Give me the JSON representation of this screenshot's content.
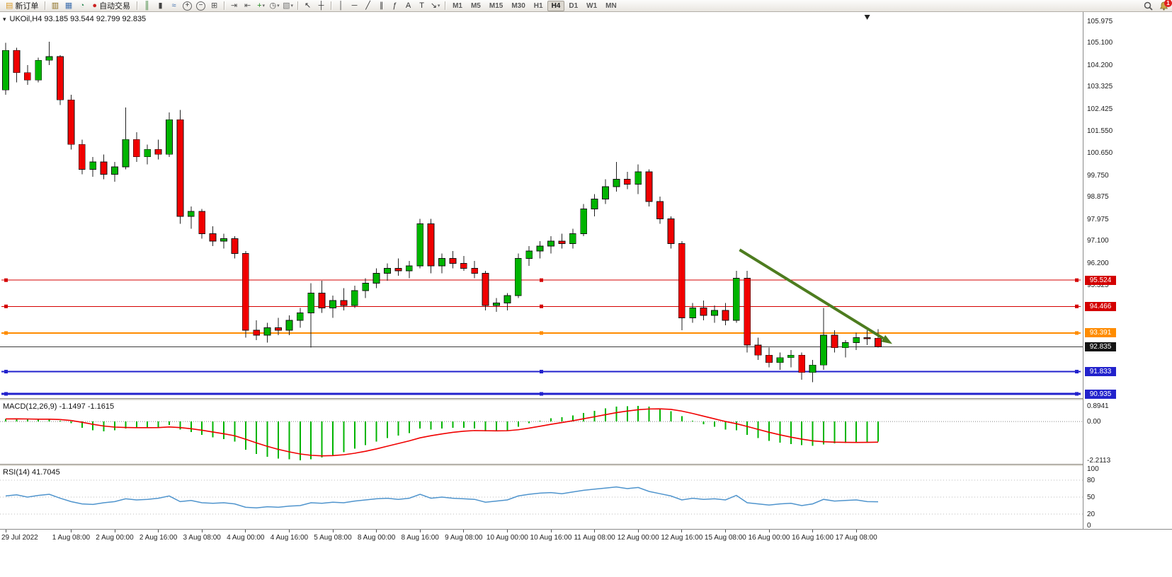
{
  "toolbar": {
    "notification_count": "1",
    "active_timeframe": "H4",
    "items": [
      {
        "t": "btn",
        "name": "new-order-button",
        "label": "新订单",
        "glyph": "▤",
        "color": "#d89b2c"
      },
      {
        "t": "sep"
      },
      {
        "t": "icon",
        "name": "charts-grid-icon",
        "glyph": "▥",
        "color": "#8a6d1f"
      },
      {
        "t": "icon",
        "name": "profiles-icon",
        "glyph": "▦",
        "color": "#3e6fae"
      },
      {
        "t": "icon",
        "name": "refresh-icon",
        "glyph": "◔",
        "color": "#2f8b57"
      },
      {
        "t": "btn",
        "name": "autotrading-button",
        "label": "自动交易",
        "glyph": "●",
        "color": "#cc2222"
      },
      {
        "t": "sep"
      },
      {
        "t": "icon",
        "name": "bar-chart-type-icon",
        "glyph": "║",
        "color": "#2f7d2f"
      },
      {
        "t": "icon",
        "name": "candlestick-type-icon",
        "glyph": "▮",
        "color": "#444444"
      },
      {
        "t": "icon",
        "name": "line-chart-type-icon",
        "glyph": "≈",
        "color": "#3e6fae"
      },
      {
        "t": "icon",
        "name": "zoom-in-icon",
        "glyph": "+",
        "color": "#333333",
        "circle": true
      },
      {
        "t": "icon",
        "name": "zoom-out-icon",
        "glyph": "−",
        "color": "#333333",
        "circle": true
      },
      {
        "t": "icon",
        "name": "tile-windows-icon",
        "glyph": "⊞",
        "color": "#555555"
      },
      {
        "t": "sep"
      },
      {
        "t": "icon",
        "name": "auto-scroll-icon",
        "glyph": "⇥",
        "color": "#555555"
      },
      {
        "t": "icon",
        "name": "chart-shift-icon",
        "glyph": "⇤",
        "color": "#555555"
      },
      {
        "t": "icon",
        "name": "add-indicator-icon",
        "glyph": "+",
        "color": "#1c8a1c",
        "dd": true
      },
      {
        "t": "icon",
        "name": "periods-icon",
        "glyph": "◷",
        "color": "#555555",
        "dd": true
      },
      {
        "t": "icon",
        "name": "templates-icon",
        "glyph": "▧",
        "color": "#777777",
        "dd": true
      },
      {
        "t": "sep"
      },
      {
        "t": "icon",
        "name": "cursor-icon",
        "glyph": "↖",
        "color": "#333333"
      },
      {
        "t": "icon",
        "name": "crosshair-icon",
        "glyph": "┼",
        "color": "#333333"
      },
      {
        "t": "sep"
      },
      {
        "t": "icon",
        "name": "vertical-line-icon",
        "glyph": "│",
        "color": "#333333"
      },
      {
        "t": "icon",
        "name": "horizontal-line-icon",
        "glyph": "─",
        "color": "#333333"
      },
      {
        "t": "icon",
        "name": "trendline-icon",
        "glyph": "╱",
        "color": "#333333"
      },
      {
        "t": "icon",
        "name": "channel-icon",
        "glyph": "∥",
        "color": "#333333"
      },
      {
        "t": "icon",
        "name": "fibonacci-icon",
        "glyph": "ƒ",
        "color": "#333333"
      },
      {
        "t": "icon",
        "name": "text-icon",
        "glyph": "A",
        "color": "#333333"
      },
      {
        "t": "icon",
        "name": "label-icon",
        "glyph": "T",
        "color": "#333333"
      },
      {
        "t": "icon",
        "name": "arrows-icon",
        "glyph": "↘",
        "color": "#333333",
        "dd": true
      },
      {
        "t": "sep"
      },
      {
        "t": "tf",
        "name": "timeframe-m1",
        "label": "M1"
      },
      {
        "t": "tf",
        "name": "timeframe-m5",
        "label": "M5"
      },
      {
        "t": "tf",
        "name": "timeframe-m15",
        "label": "M15"
      },
      {
        "t": "tf",
        "name": "timeframe-m30",
        "label": "M30"
      },
      {
        "t": "tf",
        "name": "timeframe-h1",
        "label": "H1"
      },
      {
        "t": "tf",
        "name": "timeframe-h4",
        "label": "H4"
      },
      {
        "t": "tf",
        "name": "timeframe-d1",
        "label": "D1"
      },
      {
        "t": "tf",
        "name": "timeframe-w1",
        "label": "W1"
      },
      {
        "t": "tf",
        "name": "timeframe-mn",
        "label": "MN"
      }
    ]
  },
  "chart": {
    "title": "UKOil,H4 93.185 93.544 92.799 92.835",
    "symbol": "UKOil",
    "period": "H4",
    "open": "93.185",
    "high": "93.544",
    "low": "92.799",
    "close": "92.835",
    "collapse_glyph": "▾"
  },
  "macd": {
    "label": "MACD(12,26,9) -1.1497 -1.1615",
    "ticks": [
      {
        "v": 0.8941,
        "label": "0.8941"
      },
      {
        "v": 0,
        "label": "0.00"
      },
      {
        "v": -2.2113,
        "label": "-2.2113"
      }
    ]
  },
  "rsi": {
    "label": "RSI(14) 41.7045",
    "ticks": [
      {
        "v": 100,
        "label": "100"
      },
      {
        "v": 80,
        "label": "80"
      },
      {
        "v": 50,
        "label": "50"
      },
      {
        "v": 20,
        "label": "20"
      },
      {
        "v": 0,
        "label": "0"
      }
    ],
    "levels": [
      80,
      50,
      20
    ]
  },
  "chart_data": {
    "type": "candlestick",
    "title": "UKOil,H4",
    "timeframe": "H4",
    "ylim": [
      90.5,
      106.2
    ],
    "colors": {
      "up": "#00b400",
      "down": "#f00000",
      "wick": "#222222",
      "macd_hist": "#00b400",
      "macd_signal": "#f00000",
      "rsi_line": "#4f94cd",
      "bid_line": "#3c3c3c",
      "bid_tag": "#141414",
      "arrow": "#4d7c1f"
    },
    "y_ticks": [
      {
        "p": 105.975,
        "label": "105.975"
      },
      {
        "p": 105.1,
        "label": "105.100"
      },
      {
        "p": 104.2,
        "label": "104.200"
      },
      {
        "p": 103.325,
        "label": "103.325"
      },
      {
        "p": 102.425,
        "label": "102.425"
      },
      {
        "p": 101.55,
        "label": "101.550"
      },
      {
        "p": 100.65,
        "label": "100.650"
      },
      {
        "p": 99.75,
        "label": "99.750"
      },
      {
        "p": 98.875,
        "label": "98.875"
      },
      {
        "p": 97.975,
        "label": "97.975"
      },
      {
        "p": 97.1,
        "label": "97.100"
      },
      {
        "p": 96.2,
        "label": "96.200"
      },
      {
        "p": 95.325,
        "label": "95.325"
      }
    ],
    "levels": [
      {
        "price": 95.524,
        "label": "95.524",
        "color": "#d40000",
        "width": 1
      },
      {
        "price": 94.466,
        "label": "94.466",
        "color": "#d40000",
        "width": 1
      },
      {
        "price": 93.391,
        "label": "93.391",
        "color": "#ff8c00",
        "width": 2
      },
      {
        "price": 91.833,
        "label": "91.833",
        "color": "#2222cc",
        "width": 2
      },
      {
        "price": 90.935,
        "label": "90.935",
        "color": "#2222cc",
        "width": 3
      }
    ],
    "bid": {
      "price": 92.835,
      "label": "92.835"
    },
    "arrow": {
      "from": {
        "i": 67.3,
        "price": 96.75
      },
      "to": {
        "i": 81.3,
        "price": 92.95
      }
    },
    "current_bar_marker": {
      "i": 79
    },
    "x_labels": [
      {
        "i": 0,
        "label": "29 Jul 2022"
      },
      {
        "i": 6,
        "label": "1 Aug 08:00"
      },
      {
        "i": 10,
        "label": "2 Aug 00:00"
      },
      {
        "i": 14,
        "label": "2 Aug 16:00"
      },
      {
        "i": 18,
        "label": "3 Aug 08:00"
      },
      {
        "i": 22,
        "label": "4 Aug 00:00"
      },
      {
        "i": 26,
        "label": "4 Aug 16:00"
      },
      {
        "i": 30,
        "label": "5 Aug 08:00"
      },
      {
        "i": 34,
        "label": "8 Aug 00:00"
      },
      {
        "i": 38,
        "label": "8 Aug 16:00"
      },
      {
        "i": 42,
        "label": "9 Aug 08:00"
      },
      {
        "i": 46,
        "label": "10 Aug 00:00"
      },
      {
        "i": 50,
        "label": "10 Aug 16:00"
      },
      {
        "i": 54,
        "label": "11 Aug 08:00"
      },
      {
        "i": 58,
        "label": "12 Aug 00:00"
      },
      {
        "i": 62,
        "label": "12 Aug 16:00"
      },
      {
        "i": 66,
        "label": "15 Aug 08:00"
      },
      {
        "i": 70,
        "label": "16 Aug 00:00"
      },
      {
        "i": 74,
        "label": "16 Aug 16:00"
      },
      {
        "i": 78,
        "label": "17 Aug 08:00"
      }
    ],
    "ohlc": [
      [
        103.2,
        105.1,
        103.0,
        104.8
      ],
      [
        104.8,
        104.9,
        103.5,
        103.9
      ],
      [
        103.9,
        104.2,
        103.4,
        103.6
      ],
      [
        103.6,
        104.5,
        103.5,
        104.4
      ],
      [
        104.4,
        105.15,
        104.2,
        104.55
      ],
      [
        104.55,
        104.6,
        102.6,
        102.8
      ],
      [
        102.8,
        103.0,
        100.8,
        101.0
      ],
      [
        101.0,
        101.2,
        99.8,
        100.0
      ],
      [
        100.0,
        100.5,
        99.7,
        100.3
      ],
      [
        100.3,
        100.6,
        99.6,
        99.8
      ],
      [
        99.8,
        100.3,
        99.5,
        100.1
      ],
      [
        100.1,
        102.5,
        100.0,
        101.2
      ],
      [
        101.2,
        101.5,
        100.3,
        100.5
      ],
      [
        100.5,
        101.0,
        100.2,
        100.8
      ],
      [
        100.8,
        101.2,
        100.4,
        100.6
      ],
      [
        100.6,
        102.3,
        100.5,
        102.0
      ],
      [
        102.0,
        102.4,
        97.8,
        98.1
      ],
      [
        98.1,
        98.5,
        97.6,
        98.3
      ],
      [
        98.3,
        98.4,
        97.2,
        97.4
      ],
      [
        97.4,
        97.7,
        96.9,
        97.1
      ],
      [
        97.1,
        97.4,
        96.8,
        97.2
      ],
      [
        97.2,
        97.3,
        96.4,
        96.6
      ],
      [
        96.6,
        96.7,
        93.2,
        93.5
      ],
      [
        93.5,
        93.9,
        93.1,
        93.3
      ],
      [
        93.3,
        93.8,
        93.0,
        93.6
      ],
      [
        93.6,
        94.0,
        93.3,
        93.5
      ],
      [
        93.5,
        94.1,
        93.3,
        93.9
      ],
      [
        93.9,
        94.4,
        93.6,
        94.2
      ],
      [
        94.2,
        95.4,
        92.8,
        95.0
      ],
      [
        95.0,
        95.5,
        94.2,
        94.4
      ],
      [
        94.4,
        94.9,
        94.0,
        94.7
      ],
      [
        94.7,
        95.2,
        94.3,
        94.5
      ],
      [
        94.5,
        95.3,
        94.4,
        95.1
      ],
      [
        95.1,
        95.6,
        94.8,
        95.4
      ],
      [
        95.4,
        96.0,
        95.2,
        95.8
      ],
      [
        95.8,
        96.2,
        95.5,
        96.0
      ],
      [
        96.0,
        96.4,
        95.7,
        95.9
      ],
      [
        95.9,
        96.3,
        95.6,
        96.1
      ],
      [
        96.1,
        98.0,
        96.0,
        97.8
      ],
      [
        97.8,
        98.0,
        95.8,
        96.1
      ],
      [
        96.1,
        96.6,
        95.8,
        96.4
      ],
      [
        96.4,
        96.7,
        96.0,
        96.2
      ],
      [
        96.2,
        96.5,
        95.9,
        96.0
      ],
      [
        96.0,
        96.3,
        95.6,
        95.8
      ],
      [
        95.8,
        95.9,
        94.3,
        94.5
      ],
      [
        94.5,
        94.8,
        94.25,
        94.6
      ],
      [
        94.6,
        95.0,
        94.3,
        94.9
      ],
      [
        94.9,
        96.6,
        94.8,
        96.4
      ],
      [
        96.4,
        96.9,
        96.1,
        96.7
      ],
      [
        96.7,
        97.1,
        96.4,
        96.9
      ],
      [
        96.9,
        97.3,
        96.6,
        97.1
      ],
      [
        97.1,
        97.4,
        96.8,
        97.0
      ],
      [
        97.0,
        97.6,
        96.8,
        97.4
      ],
      [
        97.4,
        98.6,
        97.3,
        98.4
      ],
      [
        98.4,
        99.0,
        98.1,
        98.8
      ],
      [
        98.8,
        99.6,
        98.6,
        99.3
      ],
      [
        99.3,
        100.3,
        99.1,
        99.6
      ],
      [
        99.6,
        99.9,
        99.2,
        99.4
      ],
      [
        99.4,
        100.2,
        99.0,
        99.9
      ],
      [
        99.9,
        100.0,
        98.5,
        98.7
      ],
      [
        98.7,
        98.9,
        97.8,
        98.0
      ],
      [
        98.0,
        98.1,
        96.8,
        97.0
      ],
      [
        97.0,
        97.1,
        93.5,
        94.0
      ],
      [
        94.0,
        94.6,
        93.8,
        94.4
      ],
      [
        94.4,
        94.7,
        93.9,
        94.1
      ],
      [
        94.1,
        94.5,
        93.8,
        94.3
      ],
      [
        94.3,
        94.6,
        93.7,
        93.9
      ],
      [
        93.9,
        95.9,
        93.8,
        95.6
      ],
      [
        95.6,
        95.9,
        92.6,
        92.9
      ],
      [
        92.9,
        93.2,
        92.3,
        92.5
      ],
      [
        92.5,
        92.8,
        92.0,
        92.2
      ],
      [
        92.2,
        92.6,
        91.9,
        92.4
      ],
      [
        92.4,
        92.7,
        92.0,
        92.5
      ],
      [
        92.5,
        92.6,
        91.5,
        91.8
      ],
      [
        91.8,
        92.3,
        91.4,
        92.1
      ],
      [
        92.1,
        94.4,
        91.9,
        93.3
      ],
      [
        93.3,
        93.5,
        92.6,
        92.8
      ],
      [
        92.8,
        93.1,
        92.4,
        93.0
      ],
      [
        93.0,
        93.4,
        92.7,
        93.2
      ],
      [
        93.2,
        93.5,
        92.9,
        93.185
      ],
      [
        93.185,
        93.544,
        92.799,
        92.835
      ]
    ],
    "indicators": [
      {
        "type": "bar",
        "name": "MACD(12,26,9)",
        "current": "-1.1497 -1.1615",
        "range": [
          -2.2113,
          0.8941
        ],
        "values": [
          0.15,
          0.18,
          0.12,
          0.1,
          0.14,
          0.05,
          -0.1,
          -0.35,
          -0.5,
          -0.55,
          -0.5,
          -0.4,
          -0.38,
          -0.35,
          -0.33,
          -0.2,
          -0.45,
          -0.6,
          -0.75,
          -0.9,
          -1.0,
          -1.15,
          -1.6,
          -1.85,
          -2.0,
          -2.1,
          -2.15,
          -2.2113,
          -2.15,
          -2.05,
          -1.9,
          -1.75,
          -1.55,
          -1.35,
          -1.15,
          -0.95,
          -0.8,
          -0.65,
          -0.4,
          -0.45,
          -0.4,
          -0.35,
          -0.35,
          -0.4,
          -0.55,
          -0.55,
          -0.5,
          -0.3,
          -0.1,
          0.05,
          0.18,
          0.25,
          0.35,
          0.5,
          0.62,
          0.75,
          0.85,
          0.88,
          0.8941,
          0.85,
          0.75,
          0.6,
          0.3,
          0.05,
          -0.15,
          -0.3,
          -0.45,
          -0.5,
          -0.75,
          -0.95,
          -1.1,
          -1.2,
          -1.28,
          -1.35,
          -1.38,
          -1.3,
          -1.25,
          -1.22,
          -1.2,
          -1.17,
          -1.1497
        ]
      },
      {
        "type": "line",
        "name": "RSI(14)",
        "current": 41.7045,
        "range": [
          0,
          100
        ],
        "values": [
          52,
          54,
          50,
          53,
          55,
          48,
          42,
          38,
          37,
          40,
          42,
          47,
          45,
          46,
          48,
          52,
          42,
          44,
          40,
          39,
          40,
          38,
          32,
          31,
          33,
          32,
          34,
          35,
          40,
          39,
          41,
          40,
          43,
          45,
          47,
          48,
          46,
          48,
          55,
          48,
          50,
          48,
          47,
          46,
          41,
          43,
          45,
          52,
          55,
          57,
          58,
          56,
          59,
          62,
          64,
          66,
          68,
          65,
          67,
          60,
          56,
          52,
          45,
          48,
          46,
          47,
          45,
          53,
          40,
          38,
          36,
          38,
          39,
          35,
          38,
          46,
          43,
          44,
          45,
          42,
          41.7
        ]
      }
    ]
  }
}
